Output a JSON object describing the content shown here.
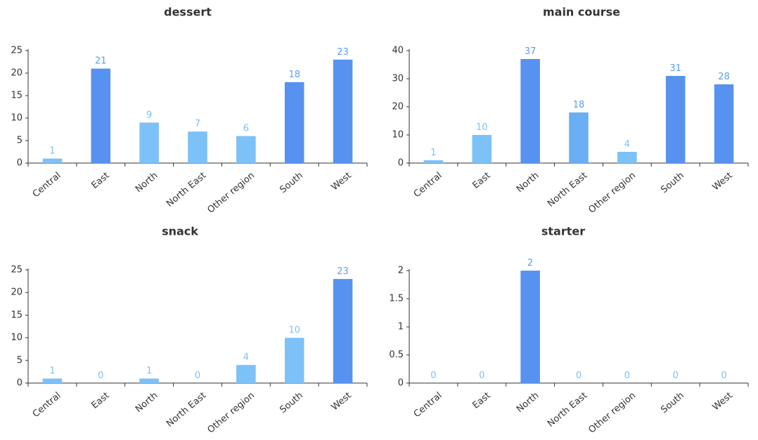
{
  "colors": {
    "low": "#7cc1f8",
    "mid": "#6aaef4",
    "high": "#5892f0",
    "label": "#5b9ff3"
  },
  "chart_data": [
    {
      "type": "bar",
      "title": "dessert",
      "categories": [
        "Central",
        "East",
        "North",
        "North East",
        "Other region",
        "South",
        "West"
      ],
      "values": [
        1,
        21,
        9,
        7,
        6,
        18,
        23
      ],
      "ylim": [
        0,
        25
      ],
      "yticks": [
        0,
        5,
        10,
        15,
        20,
        25
      ],
      "ytick_labels": [
        "0",
        "5",
        "10",
        "15",
        "20",
        "25"
      ]
    },
    {
      "type": "bar",
      "title": "main course",
      "categories": [
        "Central",
        "East",
        "North",
        "North East",
        "Other region",
        "South",
        "West"
      ],
      "values": [
        1,
        10,
        37,
        18,
        4,
        31,
        28
      ],
      "ylim": [
        0,
        40
      ],
      "yticks": [
        0,
        10,
        20,
        30,
        40
      ],
      "ytick_labels": [
        "0",
        "10",
        "20",
        "30",
        "40"
      ]
    },
    {
      "type": "bar",
      "title": "snack",
      "categories": [
        "Central",
        "East",
        "North",
        "North East",
        "Other region",
        "South",
        "West"
      ],
      "values": [
        1,
        0,
        1,
        0,
        4,
        10,
        23
      ],
      "ylim": [
        0,
        25
      ],
      "yticks": [
        0,
        5,
        10,
        15,
        20,
        25
      ],
      "ytick_labels": [
        "0",
        "5",
        "10",
        "15",
        "20",
        "25"
      ]
    },
    {
      "type": "bar",
      "title": "starter",
      "categories": [
        "Central",
        "East",
        "North",
        "North East",
        "Other region",
        "South",
        "West"
      ],
      "values": [
        0,
        0,
        2,
        0,
        0,
        0,
        0
      ],
      "ylim": [
        0,
        2
      ],
      "yticks": [
        0,
        0.5,
        1,
        1.5,
        2
      ],
      "ytick_labels": [
        "0",
        "0.5",
        "1",
        "1.5",
        "2"
      ]
    }
  ]
}
